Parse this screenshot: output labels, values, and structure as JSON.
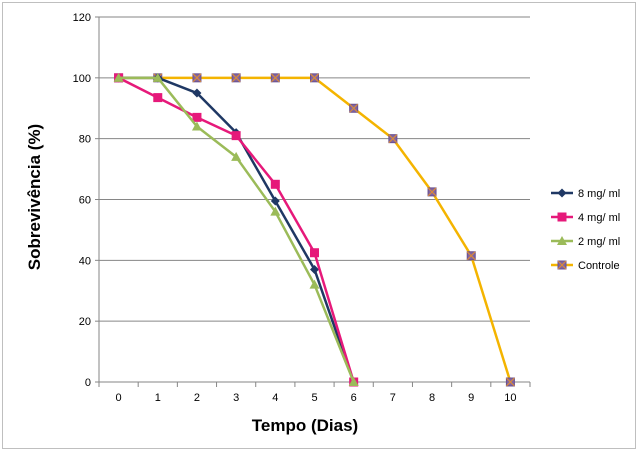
{
  "chart_data": {
    "type": "line",
    "xlabel": "Tempo (Dias)",
    "ylabel": "Sobrevivência (%)",
    "x_ticks": [
      0,
      1,
      2,
      3,
      4,
      5,
      6,
      7,
      8,
      9,
      10
    ],
    "y_ticks": [
      0,
      20,
      40,
      60,
      80,
      100,
      120
    ],
    "ylim": [
      0,
      120
    ],
    "xlim": [
      0,
      10
    ],
    "grid": "horizontal",
    "legend_position": "right",
    "series": [
      {
        "name": "8 mg/ ml",
        "color": "#1f3864",
        "marker": "diamond",
        "x": [
          0,
          1,
          2,
          3,
          4,
          5,
          6
        ],
        "values": [
          100,
          100,
          95,
          82,
          59.5,
          37,
          0
        ]
      },
      {
        "name": "4 mg/ ml",
        "color": "#e6197a",
        "marker": "square",
        "x": [
          0,
          1,
          2,
          3,
          4,
          5,
          6
        ],
        "values": [
          100,
          93.5,
          87,
          81,
          65,
          42.5,
          0
        ]
      },
      {
        "name": "2 mg/ ml",
        "color": "#9bbb59",
        "marker": "triangle",
        "x": [
          0,
          1,
          2,
          3,
          4,
          5,
          6
        ],
        "values": [
          100,
          100,
          84,
          74,
          56,
          32,
          0
        ]
      },
      {
        "name": "Controle",
        "color": "#f4b400",
        "marker": "x-square",
        "x": [
          0,
          1,
          2,
          3,
          4,
          5,
          6,
          7,
          8,
          9,
          10
        ],
        "values": [
          100,
          100,
          100,
          100,
          100,
          100,
          90,
          80,
          62.5,
          41.5,
          0
        ]
      }
    ]
  }
}
